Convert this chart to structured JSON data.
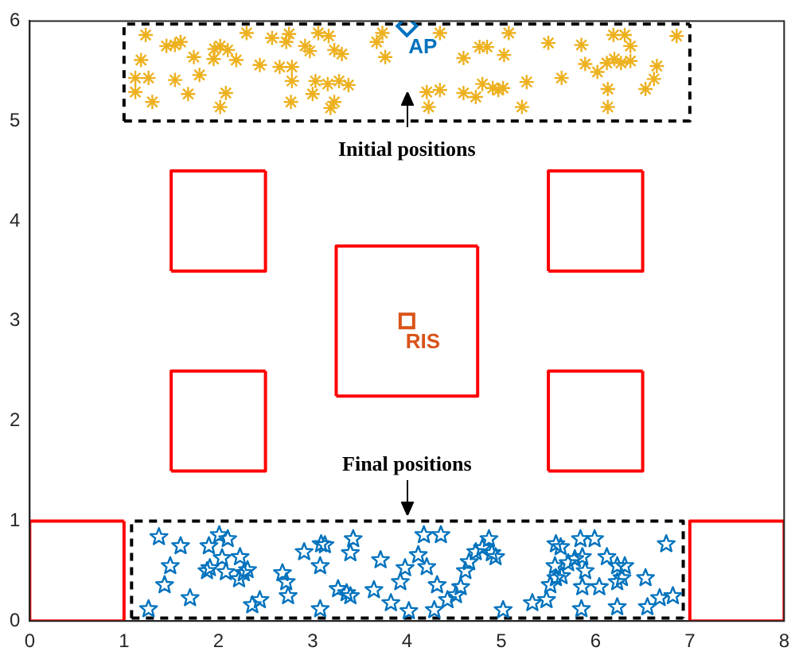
{
  "chart_data": {
    "type": "scatter",
    "xlim": [
      0,
      8
    ],
    "ylim": [
      0,
      6
    ],
    "xticks": [
      0,
      1,
      2,
      3,
      4,
      5,
      6,
      7,
      8
    ],
    "yticks": [
      0,
      1,
      2,
      3,
      4,
      5,
      6
    ],
    "grid": false,
    "legend": false,
    "annotations": [
      "Initial positions",
      "Final positions"
    ],
    "series": [
      {
        "type": "line",
        "color": "#ff0000",
        "marker": "none",
        "line_style": "solid",
        "x": [
          0,
          1,
          1
        ],
        "values": [
          0,
          0,
          1
        ]
      },
      {
        "type": "line",
        "color": "#ff0000",
        "marker": "none",
        "line_style": "solid",
        "x": [
          0,
          0,
          1
        ],
        "values": [
          0,
          1,
          1
        ]
      },
      {
        "type": "line",
        "color": "#ff0000",
        "marker": "none",
        "line_style": "solid",
        "x": [
          7,
          8,
          8
        ],
        "values": [
          0,
          0,
          1
        ]
      },
      {
        "type": "line",
        "color": "#ff0000",
        "marker": "none",
        "line_style": "solid",
        "x": [
          7,
          7,
          8
        ],
        "values": [
          0,
          1,
          1
        ]
      },
      {
        "type": "line",
        "color": "#ff0000",
        "marker": "none",
        "line_style": "solid",
        "x": [
          1.5,
          2.5,
          2.5
        ],
        "values": [
          3.5,
          3.5,
          4.5
        ]
      },
      {
        "type": "line",
        "color": "#ff0000",
        "marker": "none",
        "line_style": "solid",
        "x": [
          1.5,
          1.5,
          2.5
        ],
        "values": [
          3.5,
          4.5,
          4.5
        ]
      },
      {
        "type": "line",
        "color": "#ff0000",
        "marker": "none",
        "line_style": "solid",
        "x": [
          5.5,
          6.5,
          6.5
        ],
        "values": [
          3.5,
          3.5,
          4.5
        ]
      },
      {
        "type": "line",
        "color": "#ff0000",
        "marker": "none",
        "line_style": "solid",
        "x": [
          5.5,
          5.5,
          6.5
        ],
        "values": [
          3.5,
          4.5,
          4.5
        ]
      },
      {
        "type": "line",
        "color": "#ff0000",
        "marker": "none",
        "line_style": "solid",
        "x": [
          1.5,
          2.5,
          2.5
        ],
        "values": [
          1.5,
          1.5,
          2.5
        ]
      },
      {
        "type": "line",
        "color": "#ff0000",
        "marker": "none",
        "line_style": "solid",
        "x": [
          1.5,
          1.5,
          2.5
        ],
        "values": [
          1.5,
          2.5,
          2.5
        ]
      },
      {
        "type": "line",
        "color": "#ff0000",
        "marker": "none",
        "line_style": "solid",
        "x": [
          5.5,
          6.5,
          6.5
        ],
        "values": [
          1.5,
          1.5,
          2.5
        ]
      },
      {
        "type": "line",
        "color": "#ff0000",
        "marker": "none",
        "line_style": "solid",
        "x": [
          5.5,
          5.5,
          6.5
        ],
        "values": [
          1.5,
          2.5,
          2.5
        ]
      },
      {
        "type": "line",
        "color": "#ff0000",
        "marker": "none",
        "line_style": "solid",
        "x": [
          3.25,
          4.75,
          4.75
        ],
        "values": [
          2.25,
          2.25,
          3.75
        ]
      },
      {
        "type": "line",
        "color": "#ff0000",
        "marker": "none",
        "line_style": "solid",
        "x": [
          3.25,
          3.25,
          4.75
        ],
        "values": [
          2.25,
          3.75,
          3.75
        ]
      },
      {
        "type": "line",
        "color": "#000000",
        "marker": "none",
        "line_style": "dashed",
        "x": [
          1,
          7,
          7
        ],
        "values": [
          5,
          5,
          5.97
        ]
      },
      {
        "type": "line",
        "color": "#000000",
        "marker": "none",
        "line_style": "dashed",
        "x": [
          1,
          1,
          7
        ],
        "values": [
          5,
          5.97,
          5.97
        ]
      },
      {
        "type": "line",
        "color": "#000000",
        "marker": "none",
        "line_style": "dashed",
        "x": [
          1.08,
          6.93
        ],
        "values": [
          0.03,
          0.03
        ]
      },
      {
        "type": "line",
        "color": "#000000",
        "marker": "none",
        "line_style": "dashed",
        "x": [
          1.08,
          1.08,
          6.93,
          6.93
        ],
        "values": [
          0.03,
          1,
          1,
          0.03
        ]
      },
      {
        "type": "scatter",
        "color": "#edb120",
        "marker": "cross",
        "x": [
          1.23,
          1.45,
          1.54,
          1.6,
          1.18,
          1.74,
          1.96,
          1.95,
          2.02,
          2.1,
          2.19,
          2.3,
          2.44,
          2.57,
          2.72,
          2.75,
          2.92,
          2.97,
          3.06,
          3.17,
          3.23,
          3.31,
          3.68,
          3.74,
          3.77,
          1.12,
          1.26,
          1.12,
          1.54,
          1.8,
          1.3,
          1.68,
          2.08,
          2.02,
          2.65,
          2.78,
          2.78,
          3.03,
          3.16,
          3.28,
          3.38,
          3.0,
          2.77,
          3.23,
          3.19,
          4.35,
          5.08,
          4.6,
          4.77,
          4.85,
          5.03,
          5.5,
          5.85,
          6.19,
          6.31,
          6.37,
          6.86,
          5.89,
          6.02,
          6.12,
          6.2,
          6.27,
          6.37,
          6.65,
          6.62,
          6.53,
          4.21,
          4.35,
          4.6,
          4.73,
          4.8,
          4.91,
          4.97,
          5.02,
          5.27,
          5.64,
          6.13,
          4.23,
          5.22,
          6.13
        ],
        "values": [
          5.86,
          5.75,
          5.76,
          5.79,
          5.61,
          5.64,
          5.72,
          5.62,
          5.75,
          5.71,
          5.61,
          5.88,
          5.56,
          5.83,
          5.79,
          5.87,
          5.75,
          5.7,
          5.88,
          5.85,
          5.71,
          5.67,
          5.79,
          5.88,
          5.64,
          5.43,
          5.43,
          5.29,
          5.41,
          5.46,
          5.19,
          5.27,
          5.28,
          5.14,
          5.54,
          5.54,
          5.4,
          5.4,
          5.37,
          5.4,
          5.36,
          5.27,
          5.19,
          5.19,
          5.13,
          5.88,
          5.88,
          5.63,
          5.74,
          5.74,
          5.66,
          5.78,
          5.76,
          5.86,
          5.86,
          5.75,
          5.85,
          5.57,
          5.49,
          5.58,
          5.62,
          5.58,
          5.6,
          5.55,
          5.42,
          5.32,
          5.29,
          5.31,
          5.28,
          5.24,
          5.37,
          5.33,
          5.31,
          5.33,
          5.39,
          5.43,
          5.32,
          5.14,
          5.14,
          5.14
        ]
      },
      {
        "type": "scatter",
        "color": "#0072bd",
        "marker": "star",
        "x": [
          1.37,
          1.6,
          1.9,
          2.01,
          2.1,
          1.49,
          1.43,
          1.26,
          1.7,
          1.88,
          1.91,
          2.04,
          2.08,
          2.23,
          2.31,
          2.27,
          2.22,
          2.36,
          2.44,
          2.68,
          2.72,
          2.74,
          2.91,
          3.09,
          3.13,
          3.08,
          3.4,
          3.43,
          3.72,
          3.27,
          3.36,
          3.4,
          3.65,
          3.08,
          3.83,
          3.93,
          3.98,
          4.18,
          4.36,
          4.12,
          4.21,
          4.32,
          4.02,
          4.29,
          4.43,
          4.52,
          4.57,
          4.62,
          4.66,
          4.73,
          4.8,
          4.87,
          4.9,
          4.94,
          5.02,
          5.33,
          5.48,
          5.52,
          5.58,
          5.57,
          5.64,
          5.58,
          5.63,
          5.71,
          5.78,
          5.84,
          5.99,
          5.86,
          5.89,
          5.86,
          6.04,
          5.85,
          6.12,
          6.23,
          6.31,
          6.23,
          6.28,
          6.23,
          6.53,
          6.55,
          6.68,
          6.82,
          6.75
        ],
        "values": [
          0.84,
          0.75,
          0.75,
          0.86,
          0.82,
          0.55,
          0.36,
          0.12,
          0.23,
          0.5,
          0.53,
          0.63,
          0.49,
          0.64,
          0.51,
          0.48,
          0.42,
          0.16,
          0.21,
          0.48,
          0.39,
          0.25,
          0.69,
          0.77,
          0.76,
          0.55,
          0.68,
          0.82,
          0.61,
          0.32,
          0.28,
          0.25,
          0.31,
          0.12,
          0.18,
          0.39,
          0.53,
          0.86,
          0.86,
          0.66,
          0.54,
          0.36,
          0.1,
          0.11,
          0.21,
          0.26,
          0.34,
          0.5,
          0.59,
          0.69,
          0.73,
          0.82,
          0.68,
          0.64,
          0.11,
          0.18,
          0.21,
          0.36,
          0.43,
          0.55,
          0.45,
          0.77,
          0.74,
          0.58,
          0.62,
          0.82,
          0.82,
          0.64,
          0.5,
          0.34,
          0.34,
          0.12,
          0.64,
          0.55,
          0.55,
          0.39,
          0.43,
          0.14,
          0.43,
          0.14,
          0.23,
          0.25,
          0.77
        ]
      },
      {
        "type": "scatter",
        "name": "AP",
        "color": "#0072bd",
        "marker": "diamond",
        "x": [
          4
        ],
        "values": [
          5.95
        ]
      },
      {
        "type": "scatter",
        "name": "RIS",
        "color": "#d95319",
        "marker": "square",
        "x": [
          4
        ],
        "values": [
          3
        ]
      }
    ]
  }
}
